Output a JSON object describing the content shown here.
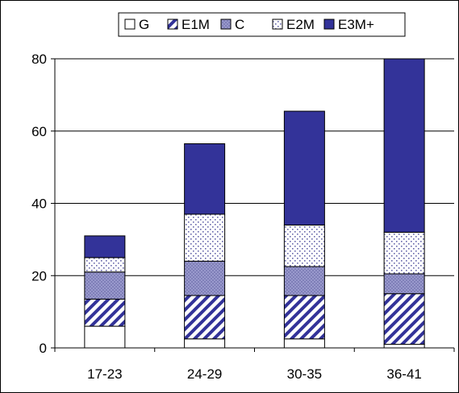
{
  "chart_data": {
    "type": "bar",
    "stacked": true,
    "categories": [
      "17-23",
      "24-29",
      "30-35",
      "36-41"
    ],
    "series": [
      {
        "name": "G",
        "values": [
          6.0,
          2.5,
          2.5,
          1.0
        ],
        "color": "#ffffff",
        "pattern": "solid-white"
      },
      {
        "name": "E1M",
        "values": [
          7.5,
          12.0,
          12.0,
          14.0
        ],
        "color": "#333399",
        "pattern": "diagonal-stripes"
      },
      {
        "name": "C",
        "values": [
          7.5,
          9.5,
          8.0,
          5.5
        ],
        "color": "#9999cc",
        "pattern": "checker"
      },
      {
        "name": "E2M",
        "values": [
          4.0,
          13.0,
          11.5,
          11.5
        ],
        "color": "#ccccff",
        "pattern": "dots"
      },
      {
        "name": "E3M+",
        "values": [
          6.0,
          19.5,
          31.5,
          48.0
        ],
        "color": "#333399",
        "pattern": "solid"
      }
    ],
    "yticks": [
      0,
      20,
      40,
      60,
      80
    ],
    "ylim": [
      0,
      80
    ],
    "grid": true,
    "legend": "top-center",
    "title": "",
    "xlabel": "",
    "ylabel": ""
  }
}
